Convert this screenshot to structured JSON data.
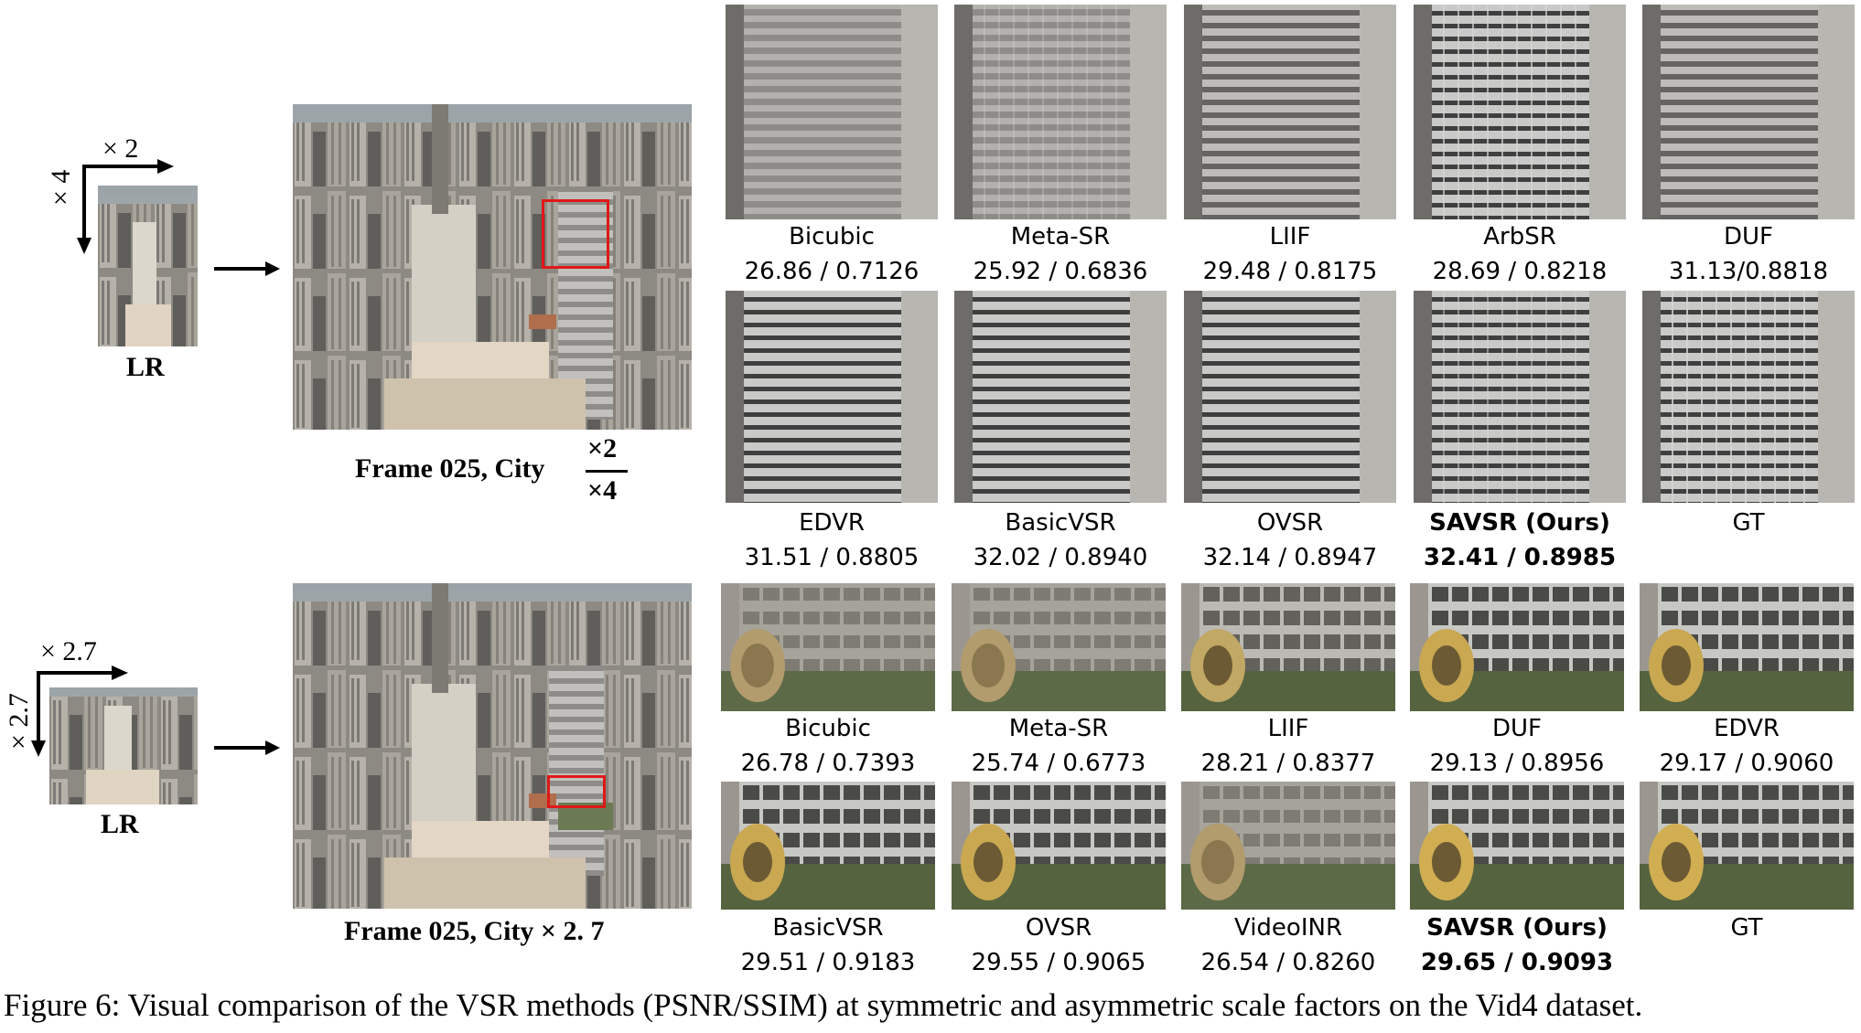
{
  "caption": "Figure 6: Visual comparison of the VSR methods (PSNR/SSIM) at symmetric and asymmetric scale factors on the Vid4 dataset.",
  "top": {
    "lr_label": "LR",
    "scale_h": "× 2",
    "scale_v": "× 4",
    "frame_label": "Frame 025, City",
    "frac_num": "×2",
    "frac_den": "×4",
    "row1": [
      {
        "method": "Bicubic",
        "score": "26.86 / 0.7126"
      },
      {
        "method": "Meta-SR",
        "score": "25.92 / 0.6836"
      },
      {
        "method": "LIIF",
        "score": "29.48 / 0.8175"
      },
      {
        "method": "ArbSR",
        "score": "28.69 / 0.8218"
      },
      {
        "method": "DUF",
        "score": "31.13/0.8818"
      }
    ],
    "row2": [
      {
        "method": "EDVR",
        "score": "31.51 / 0.8805"
      },
      {
        "method": "BasicVSR",
        "score": "32.02 / 0.8940"
      },
      {
        "method": "OVSR",
        "score": "32.14 / 0.8947"
      },
      {
        "method": "SAVSR (Ours)",
        "score": "32.41 / 0.8985"
      },
      {
        "method": "GT",
        "score": ""
      }
    ]
  },
  "bottom": {
    "lr_label": "LR",
    "scale_h": "× 2.7",
    "scale_v": "× 2.7",
    "frame_label": "Frame 025, City × 2. 7",
    "row1": [
      {
        "method": "Bicubic",
        "score": "26.78 / 0.7393"
      },
      {
        "method": "Meta-SR",
        "score": "25.74 / 0.6773"
      },
      {
        "method": "LIIF",
        "score": "28.21 / 0.8377"
      },
      {
        "method": "DUF",
        "score": "29.13 / 0.8956"
      },
      {
        "method": "EDVR",
        "score": "29.17 / 0.9060"
      }
    ],
    "row2": [
      {
        "method": "BasicVSR",
        "score": "29.51 / 0.9183"
      },
      {
        "method": "OVSR",
        "score": "29.55 / 0.9065"
      },
      {
        "method": "VideoINR",
        "score": "26.54 / 0.8260"
      },
      {
        "method": "SAVSR (Ours)",
        "score": "29.65 / 0.9093"
      },
      {
        "method": "GT",
        "score": ""
      }
    ]
  }
}
